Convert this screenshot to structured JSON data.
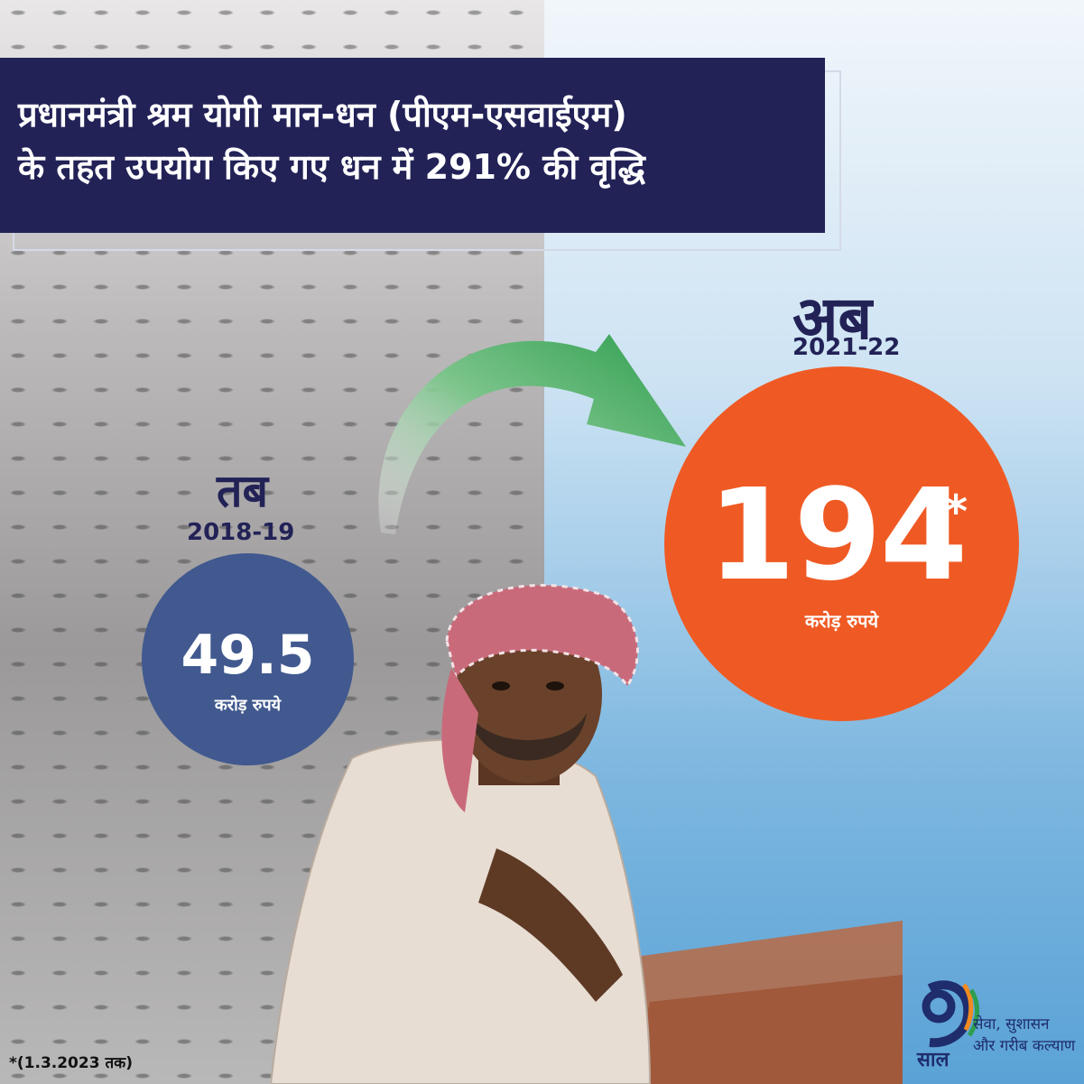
{
  "title": {
    "line1": "प्रधानमंत्री श्रम योगी मान-धन (पीएम-एसवाईएम)",
    "line2": "के तहत उपयोग किए गए धन में 291% की वृद्धि"
  },
  "then": {
    "label": "तब",
    "year": "2018-19",
    "value": "49.5",
    "unit": "करोड़ रुपये"
  },
  "now": {
    "label": "अब",
    "year": "2021-22",
    "value": "194",
    "star": "*",
    "unit": "करोड़ रुपये"
  },
  "footnote": "*(1.3.2023 तक)",
  "logo": {
    "number": "9",
    "sal": "साल",
    "line1": "सेवा, सुशासन",
    "line2": "और गरीब कल्याण"
  },
  "colors": {
    "navy": "#222257",
    "orange": "#ef5a24",
    "blue": "#41598f",
    "green": "#2e9e4f"
  }
}
